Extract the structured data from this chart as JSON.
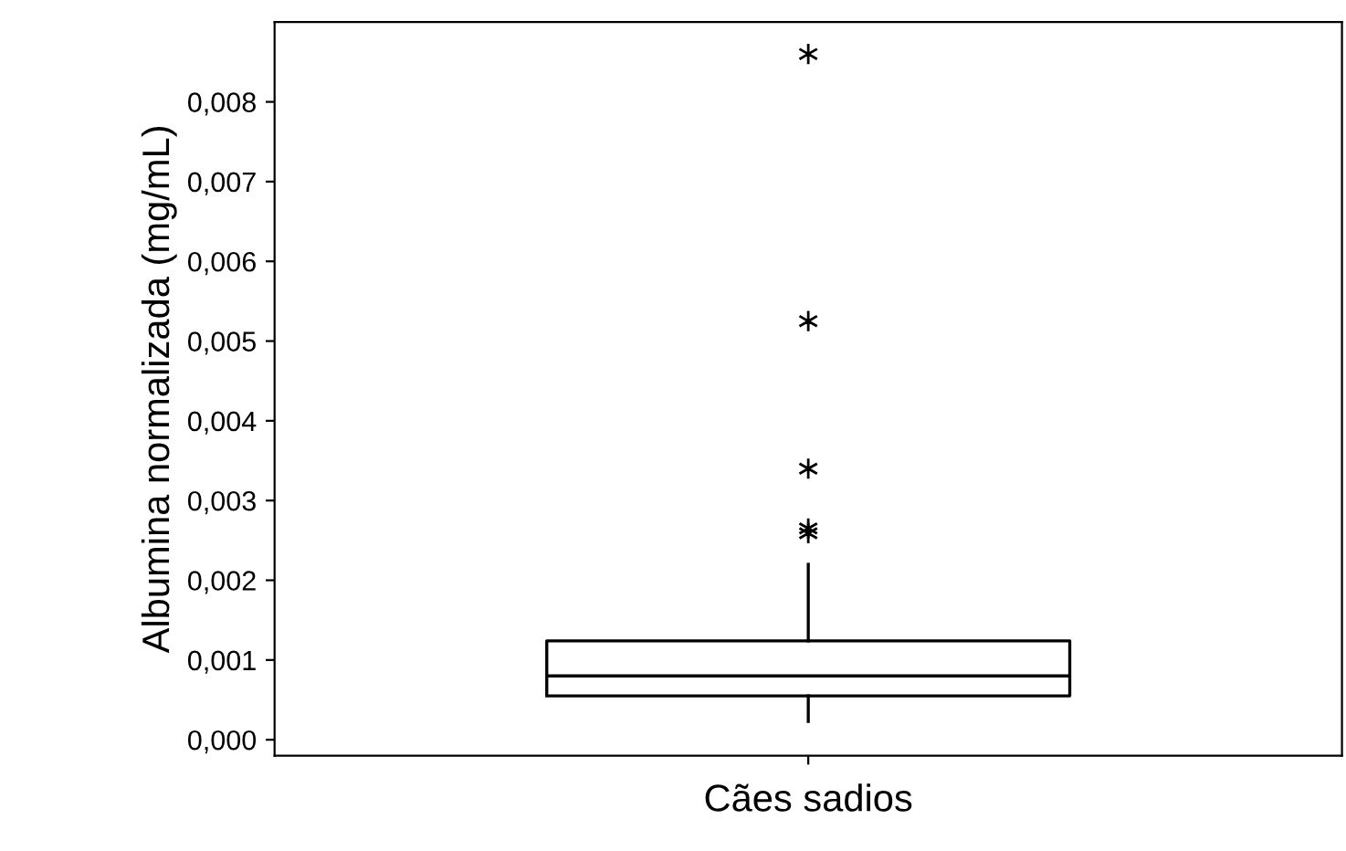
{
  "chart_data": {
    "type": "box",
    "xlabel": "Cães sadios",
    "ylabel": "Albumina normalizada (mg/mL)",
    "categories": [
      null
    ],
    "boxes": [
      {
        "low": 0.00023,
        "q1": 0.00055,
        "median": 0.0008,
        "q3": 0.00124,
        "high": 0.0022,
        "outliers": [
          0.00259,
          0.00265,
          0.0034,
          0.00525,
          0.0086
        ]
      }
    ],
    "ylim": [
      -0.0002,
      0.009
    ],
    "yticks": [
      {
        "value": 0,
        "label": "0,000"
      },
      {
        "value": 0.001,
        "label": "0,001"
      },
      {
        "value": 0.002,
        "label": "0,002"
      },
      {
        "value": 0.003,
        "label": "0,003"
      },
      {
        "value": 0.004,
        "label": "0,004"
      },
      {
        "value": 0.005,
        "label": "0,005"
      },
      {
        "value": 0.006,
        "label": "0,006"
      },
      {
        "value": 0.007,
        "label": "0,007"
      },
      {
        "value": 0.008,
        "label": "0,008"
      }
    ],
    "marker": "star",
    "grid": false,
    "legend": false
  }
}
